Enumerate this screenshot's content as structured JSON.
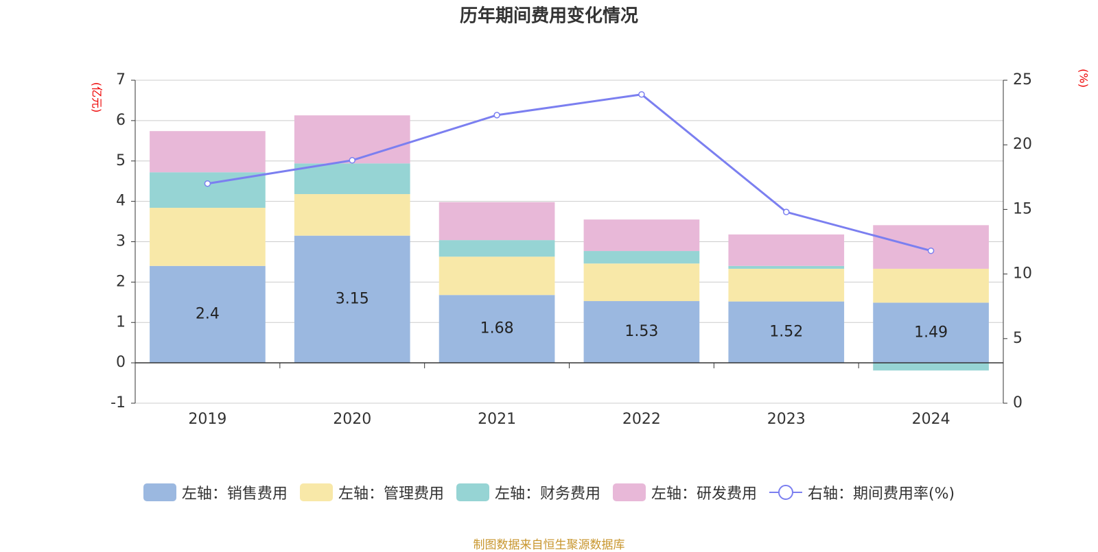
{
  "chart_data": {
    "type": "bar_line",
    "title": "历年期间费用变化情况",
    "y_axis_label": "(亿元)",
    "y2_axis_label": "(%)",
    "categories": [
      "2019",
      "2020",
      "2021",
      "2022",
      "2023",
      "2024"
    ],
    "series": [
      {
        "name": "左轴：销售费用",
        "type": "bar",
        "color": "#9bb8e0",
        "show_labels": true,
        "values": [
          2.4,
          3.15,
          1.68,
          1.53,
          1.52,
          1.49
        ]
      },
      {
        "name": "左轴：管理费用",
        "type": "bar",
        "color": "#f8e8a8",
        "values": [
          1.44,
          1.03,
          0.95,
          0.93,
          0.81,
          0.84
        ]
      },
      {
        "name": "左轴：财务费用",
        "type": "bar",
        "color": "#96d4d4",
        "values": [
          0.88,
          0.76,
          0.41,
          0.31,
          0.07,
          -0.19
        ]
      },
      {
        "name": "左轴：研发费用",
        "type": "bar",
        "color": "#e8b8d8",
        "values": [
          1.02,
          1.19,
          0.94,
          0.78,
          0.78,
          1.08
        ]
      },
      {
        "name": "右轴：期间费用率(%)",
        "type": "line",
        "axis": "y2",
        "color": "#7b7ff0",
        "values": [
          17.0,
          18.8,
          22.3,
          23.9,
          14.8,
          11.8
        ]
      }
    ],
    "ylim": [
      -1,
      7
    ],
    "yticks": [
      -1,
      0,
      1,
      2,
      3,
      4,
      5,
      6,
      7
    ],
    "y2lim": [
      0,
      25
    ],
    "y2ticks": [
      0,
      5,
      10,
      15,
      20,
      25
    ],
    "grid": true,
    "source": "制图数据来自恒生聚源数据库"
  }
}
